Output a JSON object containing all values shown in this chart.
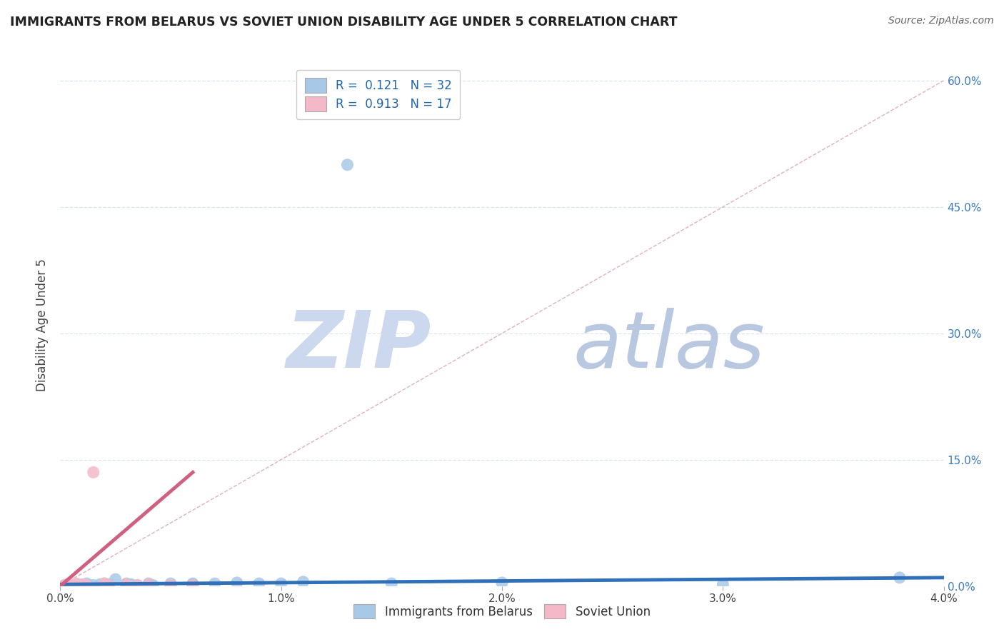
{
  "title": "IMMIGRANTS FROM BELARUS VS SOVIET UNION DISABILITY AGE UNDER 5 CORRELATION CHART",
  "source": "Source: ZipAtlas.com",
  "xlabel": "",
  "ylabel": "Disability Age Under 5",
  "xlim": [
    0.0,
    0.04
  ],
  "ylim": [
    0.0,
    0.62
  ],
  "xticks": [
    0.0,
    0.01,
    0.02,
    0.03,
    0.04
  ],
  "xtick_labels": [
    "0.0%",
    "1.0%",
    "2.0%",
    "3.0%",
    "4.0%"
  ],
  "ytick_labels_right": [
    "0.0%",
    "15.0%",
    "30.0%",
    "45.0%",
    "60.0%"
  ],
  "yticks_right": [
    0.0,
    0.15,
    0.3,
    0.45,
    0.6
  ],
  "legend1_r": "0.121",
  "legend1_n": "32",
  "legend2_r": "0.913",
  "legend2_n": "17",
  "legend_bottom_labels": [
    "Immigrants from Belarus",
    "Soviet Union"
  ],
  "blue_color": "#a8c8e8",
  "pink_color": "#f4b8c8",
  "blue_line_color": "#3070b8",
  "pink_line_color": "#d06080",
  "watermark_ZIP": "ZIP",
  "watermark_atlas": "atlas",
  "watermark_color_ZIP": "#ccd8ee",
  "watermark_color_atlas": "#b8c8e0",
  "background_color": "#ffffff",
  "grid_color": "#dde4ee",
  "blue_scatter_x": [
    0.0002,
    0.0005,
    0.0008,
    0.001,
    0.0012,
    0.0015,
    0.0018,
    0.002,
    0.002,
    0.0022,
    0.0025,
    0.003,
    0.003,
    0.0032,
    0.0035,
    0.004,
    0.004,
    0.0042,
    0.005,
    0.005,
    0.006,
    0.006,
    0.007,
    0.008,
    0.009,
    0.01,
    0.011,
    0.013,
    0.015,
    0.02,
    0.03,
    0.038
  ],
  "blue_scatter_y": [
    0.001,
    0.001,
    0.002,
    0.001,
    0.003,
    0.001,
    0.002,
    0.001,
    0.003,
    0.002,
    0.008,
    0.001,
    0.003,
    0.002,
    0.001,
    0.002,
    0.003,
    0.001,
    0.001,
    0.003,
    0.002,
    0.003,
    0.003,
    0.004,
    0.003,
    0.003,
    0.005,
    0.5,
    0.003,
    0.004,
    0.002,
    0.01
  ],
  "pink_scatter_x": [
    0.0002,
    0.0003,
    0.0005,
    0.0007,
    0.001,
    0.001,
    0.0012,
    0.0015,
    0.002,
    0.002,
    0.0022,
    0.003,
    0.003,
    0.0035,
    0.004,
    0.005,
    0.006
  ],
  "pink_scatter_y": [
    0.001,
    0.002,
    0.001,
    0.003,
    0.001,
    0.002,
    0.001,
    0.135,
    0.001,
    0.003,
    0.001,
    0.002,
    0.001,
    0.001,
    0.002,
    0.001,
    0.001
  ],
  "blue_trend_x": [
    0.0,
    0.04
  ],
  "blue_trend_y": [
    0.002,
    0.01
  ],
  "pink_trend_x": [
    0.0,
    0.006
  ],
  "pink_trend_y": [
    0.0,
    0.135
  ],
  "diag_line_x": [
    0.0,
    0.04
  ],
  "diag_line_y": [
    0.0,
    0.6
  ],
  "diag_color": "#e0b0c0"
}
